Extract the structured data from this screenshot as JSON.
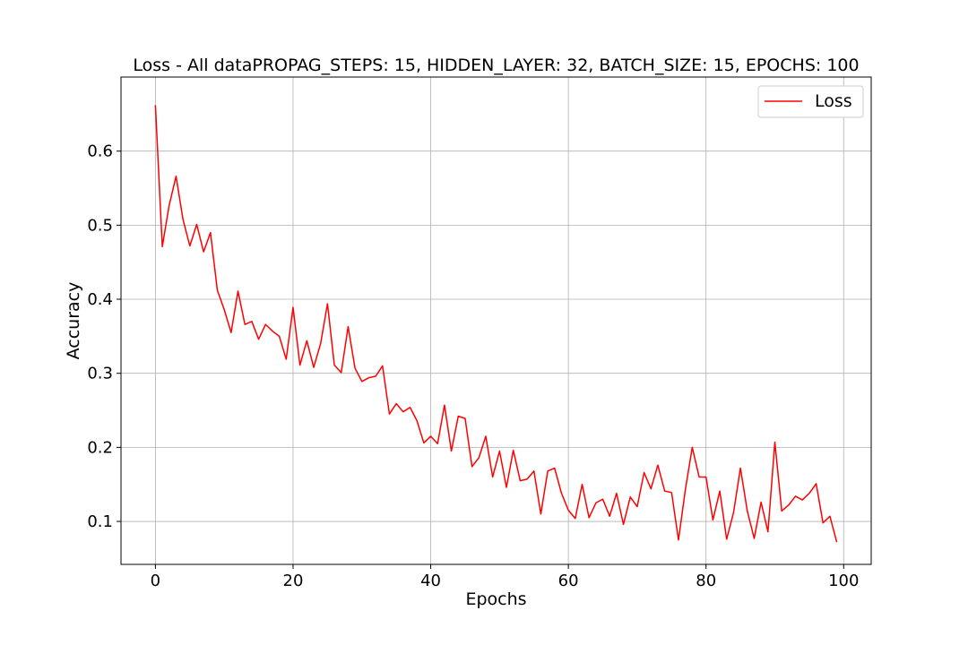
{
  "chart_data": {
    "type": "line",
    "title": "Loss - All dataPROPAG_STEPS: 15, HIDDEN_LAYER: 32, BATCH_SIZE: 15, EPOCHS: 100",
    "xlabel": "Epochs",
    "ylabel": "Accuracy",
    "xlim": [
      -5,
      104
    ],
    "ylim": [
      0.042,
      0.7
    ],
    "xticks": [
      0,
      20,
      40,
      60,
      80,
      100
    ],
    "yticks": [
      0.1,
      0.2,
      0.3,
      0.4,
      0.5,
      0.6
    ],
    "xtick_labels": [
      "0",
      "20",
      "40",
      "60",
      "80",
      "100"
    ],
    "ytick_labels": [
      "0.1",
      "0.2",
      "0.3",
      "0.4",
      "0.5",
      "0.6"
    ],
    "grid": true,
    "legend_position": "top-right",
    "series": [
      {
        "name": "Loss",
        "color": "#ff0000",
        "x": [
          0,
          1,
          2,
          3,
          4,
          5,
          6,
          7,
          8,
          9,
          10,
          11,
          12,
          13,
          14,
          15,
          16,
          17,
          18,
          19,
          20,
          21,
          22,
          23,
          24,
          25,
          26,
          27,
          28,
          29,
          30,
          31,
          32,
          33,
          34,
          35,
          36,
          37,
          38,
          39,
          40,
          41,
          42,
          43,
          44,
          45,
          46,
          47,
          48,
          49,
          50,
          51,
          52,
          53,
          54,
          55,
          56,
          57,
          58,
          59,
          60,
          61,
          62,
          63,
          64,
          65,
          66,
          67,
          68,
          69,
          70,
          71,
          72,
          73,
          74,
          75,
          76,
          77,
          78,
          79,
          80,
          81,
          82,
          83,
          84,
          85,
          86,
          87,
          88,
          89,
          90,
          91,
          92,
          93,
          94,
          95,
          96,
          97,
          98,
          99
        ],
        "values": [
          0.662,
          0.471,
          0.527,
          0.566,
          0.508,
          0.472,
          0.501,
          0.464,
          0.49,
          0.412,
          0.386,
          0.355,
          0.411,
          0.366,
          0.37,
          0.346,
          0.366,
          0.357,
          0.35,
          0.319,
          0.389,
          0.311,
          0.344,
          0.308,
          0.34,
          0.394,
          0.311,
          0.301,
          0.363,
          0.307,
          0.289,
          0.294,
          0.296,
          0.31,
          0.245,
          0.259,
          0.248,
          0.254,
          0.236,
          0.206,
          0.215,
          0.205,
          0.257,
          0.195,
          0.242,
          0.239,
          0.174,
          0.186,
          0.215,
          0.16,
          0.195,
          0.146,
          0.196,
          0.155,
          0.157,
          0.168,
          0.11,
          0.168,
          0.172,
          0.138,
          0.115,
          0.104,
          0.15,
          0.105,
          0.125,
          0.13,
          0.107,
          0.138,
          0.096,
          0.133,
          0.12,
          0.166,
          0.144,
          0.176,
          0.141,
          0.139,
          0.075,
          0.143,
          0.2,
          0.16,
          0.16,
          0.102,
          0.141,
          0.076,
          0.112,
          0.172,
          0.114,
          0.077,
          0.126,
          0.086,
          0.207,
          0.114,
          0.122,
          0.134,
          0.129,
          0.138,
          0.151,
          0.098,
          0.107,
          0.072
        ]
      }
    ]
  }
}
